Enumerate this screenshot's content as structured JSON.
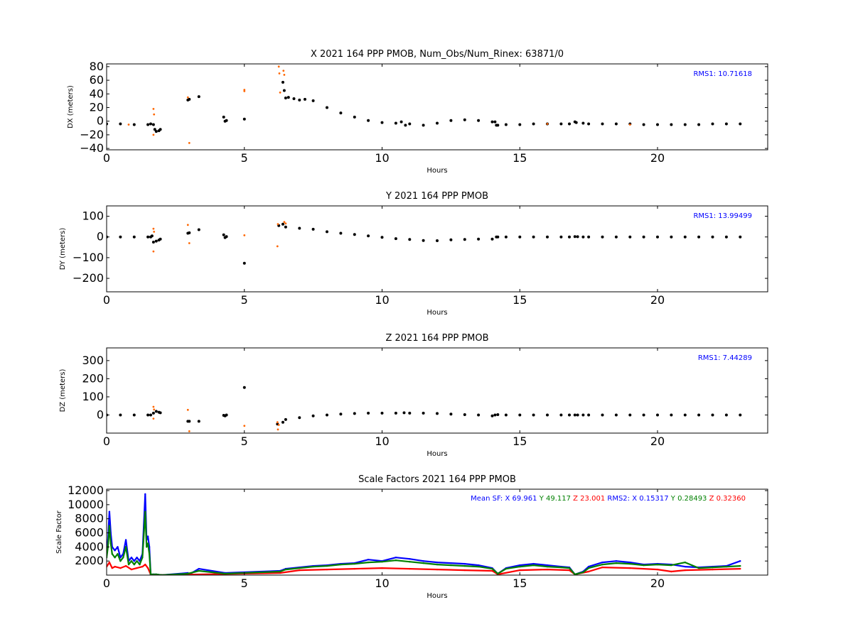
{
  "chart_data": [
    {
      "type": "scatter",
      "title": "X 2021 164 PPP  PMOB, Num_Obs/Num_Rinex: 63871/0",
      "xlabel": "Hours",
      "ylabel": "DX (meters)",
      "xlim": [
        0,
        24
      ],
      "ylim": [
        -42,
        84
      ],
      "xticks": [
        "0",
        "5",
        "10",
        "15",
        "20"
      ],
      "yticks": [
        "80",
        "60",
        "40",
        "20",
        "0",
        "−20",
        "−40"
      ],
      "annotation": "RMS1: 10.71618",
      "annotation_color": "#0000ff",
      "series": [
        {
          "color": "#000000",
          "x": [
            0,
            0.5,
            1.0,
            1.5,
            1.6,
            1.7,
            1.75,
            1.8,
            1.9,
            1.95,
            2.95,
            3.0,
            3.35,
            4.25,
            4.3,
            4.35,
            5.0,
            6.4,
            6.45,
            6.5,
            6.6,
            6.8,
            7.0,
            7.2,
            7.5,
            8.0,
            8.5,
            9.0,
            9.5,
            10.0,
            10.5,
            10.7,
            10.85,
            11.0,
            11.5,
            12.0,
            12.5,
            13.0,
            13.5,
            14.0,
            14.1,
            14.15,
            14.2,
            14.5,
            15.0,
            15.5,
            16.0,
            16.5,
            16.8,
            17.0,
            17.05,
            17.3,
            17.5,
            18.0,
            18.5,
            19.0,
            19.5,
            20.0,
            20.5,
            21.0,
            21.5,
            22.0,
            22.5,
            23.0
          ],
          "y": [
            -4,
            -4,
            -5,
            -5,
            -4,
            -5,
            -12,
            -15,
            -14,
            -12,
            31,
            32,
            36,
            6,
            0,
            1,
            3,
            57,
            45,
            34,
            35,
            33,
            31,
            32,
            30,
            20,
            12,
            6,
            1,
            -2,
            -3,
            -1,
            -6,
            -4,
            -6,
            -3,
            1,
            2,
            1,
            -1,
            -1,
            -6,
            -6,
            -5,
            -5,
            -4,
            -4,
            -4,
            -4,
            -1,
            -2,
            -3,
            -4,
            -4,
            -4,
            -4,
            -5,
            -5,
            -5,
            -5,
            -5,
            -4,
            -4,
            -4
          ]
        },
        {
          "color": "#ff6600",
          "x": [
            1.7,
            1.7,
            1.72,
            2.95,
            3.0,
            5.0,
            6.25,
            6.27,
            6.3,
            6.42,
            6.45,
            0.8,
            5.0,
            16.0,
            19.0
          ],
          "y": [
            18,
            -20,
            10,
            35,
            -32,
            46,
            80,
            70,
            42,
            74,
            68,
            -5,
            44,
            -4,
            -5
          ]
        }
      ]
    },
    {
      "type": "scatter",
      "title": "Y 2021 164 PPP  PMOB",
      "xlabel": "Hours",
      "ylabel": "DY (meters)",
      "xlim": [
        0,
        24
      ],
      "ylim": [
        -265,
        150
      ],
      "xticks": [
        "0",
        "5",
        "10",
        "15",
        "20"
      ],
      "yticks": [
        "100",
        "0",
        "−100",
        "−200"
      ],
      "annotation": "RMS1: 13.99499",
      "annotation_color": "#0000ff",
      "series": [
        {
          "color": "#000000",
          "x": [
            0,
            0.5,
            1.0,
            1.5,
            1.6,
            1.65,
            1.7,
            1.8,
            1.9,
            1.95,
            2.95,
            3.0,
            3.35,
            4.25,
            4.3,
            4.35,
            5.0,
            6.25,
            6.4,
            6.5,
            7.0,
            7.5,
            8.0,
            8.5,
            9.0,
            9.5,
            10.0,
            10.5,
            11.0,
            11.5,
            12.0,
            12.5,
            13.0,
            13.5,
            14.0,
            14.15,
            14.2,
            14.5,
            15.0,
            15.5,
            16.0,
            16.5,
            16.8,
            17.0,
            17.1,
            17.3,
            17.5,
            18.0,
            18.5,
            19.0,
            19.5,
            20.0,
            20.5,
            21.0,
            21.5,
            22.0,
            22.5,
            23.0
          ],
          "y": [
            0,
            0,
            0,
            0,
            0,
            5,
            -25,
            -20,
            -15,
            -10,
            18,
            20,
            35,
            10,
            -3,
            2,
            -127,
            55,
            62,
            48,
            42,
            37,
            25,
            18,
            12,
            5,
            -2,
            -8,
            -12,
            -17,
            -18,
            -14,
            -12,
            -10,
            -10,
            0,
            0,
            0,
            0,
            0,
            0,
            0,
            0,
            2,
            1,
            0,
            0,
            0,
            0,
            0,
            0,
            0,
            0,
            0,
            0,
            0,
            0,
            0
          ]
        },
        {
          "color": "#ff6600",
          "x": [
            1.7,
            1.7,
            1.72,
            2.95,
            3.0,
            5.0,
            6.2,
            6.22,
            6.45,
            6.5
          ],
          "y": [
            40,
            -70,
            25,
            58,
            -30,
            8,
            -45,
            62,
            72,
            65
          ]
        }
      ]
    },
    {
      "type": "scatter",
      "title": "Z 2021 164 PPP  PMOB",
      "xlabel": "Hours",
      "ylabel": "DZ (meters)",
      "xlim": [
        0,
        24
      ],
      "ylim": [
        -100,
        370
      ],
      "xticks": [
        "0",
        "5",
        "10",
        "15",
        "20"
      ],
      "yticks": [
        "300",
        "200",
        "100",
        "0"
      ],
      "annotation": "RMS1:  7.44289",
      "annotation_color": "#0000ff",
      "series": [
        {
          "color": "#000000",
          "x": [
            0,
            0.5,
            1.0,
            1.5,
            1.6,
            1.7,
            1.8,
            1.9,
            1.95,
            2.95,
            3.0,
            3.35,
            4.25,
            4.3,
            4.35,
            5.0,
            6.2,
            6.4,
            6.5,
            7.0,
            7.5,
            8.0,
            8.5,
            9.0,
            9.5,
            10.0,
            10.5,
            10.8,
            11.0,
            11.5,
            12.0,
            12.5,
            13.0,
            13.5,
            14.0,
            14.1,
            14.2,
            14.5,
            15.0,
            15.5,
            16.0,
            16.5,
            16.8,
            17.0,
            17.1,
            17.3,
            17.5,
            18.0,
            18.5,
            19.0,
            19.5,
            20.0,
            20.5,
            21.0,
            21.5,
            22.0,
            22.5,
            23.0
          ],
          "y": [
            0,
            0,
            0,
            0,
            0,
            10,
            20,
            15,
            12,
            -35,
            -35,
            -35,
            -2,
            -5,
            0,
            152,
            -50,
            -40,
            -25,
            -15,
            -5,
            0,
            5,
            8,
            10,
            10,
            10,
            12,
            10,
            10,
            8,
            5,
            2,
            0,
            -5,
            0,
            2,
            0,
            0,
            0,
            0,
            0,
            0,
            0,
            0,
            0,
            0,
            0,
            0,
            0,
            0,
            0,
            0,
            0,
            0,
            0,
            0,
            0
          ]
        },
        {
          "color": "#ff6600",
          "x": [
            1.7,
            1.7,
            1.72,
            2.95,
            3.0,
            5.0,
            6.2,
            6.22,
            6.25
          ],
          "y": [
            45,
            -20,
            30,
            28,
            -90,
            -60,
            -40,
            -80,
            -55
          ]
        }
      ]
    },
    {
      "type": "line",
      "title": "Scale Factors 2021 164 PPP  PMOB",
      "xlabel": "Hours",
      "ylabel": "Scale Factor",
      "xlim": [
        0,
        24
      ],
      "ylim": [
        0,
        12200
      ],
      "xticks": [
        "0",
        "5",
        "10",
        "15",
        "20"
      ],
      "yticks": [
        "12000",
        "10000",
        "8000",
        "6000",
        "4000",
        "2000"
      ],
      "annotation_parts": [
        {
          "text": "Mean SF: X  69.961",
          "color": "#0000ff"
        },
        {
          "text": "Y  49.117",
          "color": "#008000"
        },
        {
          "text": "Z  23.001",
          "color": "#ff0000"
        },
        {
          "text": "RMS2: X  0.15317",
          "color": "#0000ff"
        },
        {
          "text": "Y  0.28493",
          "color": "#008000"
        },
        {
          "text": "Z  0.32360",
          "color": "#ff0000"
        }
      ],
      "series": [
        {
          "color": "#0000ff",
          "x": [
            0,
            0.05,
            0.1,
            0.15,
            0.2,
            0.3,
            0.4,
            0.5,
            0.6,
            0.7,
            0.8,
            0.9,
            1.0,
            1.1,
            1.2,
            1.3,
            1.4,
            1.45,
            1.5,
            1.55,
            1.6,
            1.7,
            1.8,
            2.0,
            2.95,
            3.0,
            3.35,
            4.3,
            6.3,
            6.5,
            7.0,
            7.5,
            8.0,
            8.5,
            9.0,
            9.5,
            10.0,
            10.5,
            11.0,
            11.5,
            12.0,
            12.5,
            13.0,
            13.5,
            14.0,
            14.2,
            14.5,
            15.0,
            15.5,
            16.0,
            16.5,
            16.8,
            17.0,
            17.3,
            17.5,
            18.0,
            18.5,
            19.0,
            19.5,
            20.0,
            20.5,
            21.0,
            21.5,
            22.0,
            22.5,
            23.0
          ],
          "y": [
            3500,
            5000,
            9000,
            6000,
            4000,
            3500,
            4000,
            2500,
            3000,
            5000,
            2000,
            2500,
            2000,
            2500,
            2000,
            3000,
            11500,
            5000,
            5500,
            4000,
            100,
            100,
            100,
            0,
            300,
            100,
            900,
            300,
            600,
            900,
            1100,
            1300,
            1400,
            1600,
            1700,
            2200,
            2000,
            2500,
            2300,
            2000,
            1800,
            1700,
            1600,
            1400,
            1000,
            200,
            1000,
            1400,
            1600,
            1400,
            1200,
            1100,
            100,
            500,
            1200,
            1800,
            2000,
            1800,
            1500,
            1600,
            1500,
            1200,
            1100,
            1200,
            1300,
            2000
          ]
        },
        {
          "color": "#ff0000",
          "x": [
            0,
            0.1,
            0.2,
            0.3,
            0.5,
            0.7,
            0.9,
            1.1,
            1.3,
            1.4,
            1.5,
            1.6,
            2.0,
            6.3,
            7.0,
            8.0,
            9.0,
            10.0,
            11.0,
            12.0,
            13.0,
            14.0,
            14.2,
            15.0,
            16.0,
            16.8,
            17.0,
            17.5,
            18.0,
            19.0,
            20.0,
            20.5,
            21.0,
            22.0,
            23.0
          ],
          "y": [
            1200,
            1800,
            1000,
            1200,
            1000,
            1300,
            800,
            1000,
            1200,
            1500,
            1000,
            100,
            0,
            300,
            700,
            800,
            900,
            1000,
            900,
            800,
            700,
            600,
            100,
            700,
            800,
            700,
            100,
            500,
            1100,
            1000,
            800,
            500,
            700,
            800,
            900
          ]
        },
        {
          "color": "#008000",
          "x": [
            0,
            0.05,
            0.1,
            0.15,
            0.2,
            0.3,
            0.4,
            0.5,
            0.6,
            0.7,
            0.8,
            0.9,
            1.0,
            1.1,
            1.2,
            1.3,
            1.4,
            1.45,
            1.5,
            1.55,
            1.6,
            1.8,
            2.0,
            2.95,
            3.35,
            4.3,
            6.3,
            6.5,
            7.0,
            7.5,
            8.0,
            8.5,
            9.0,
            9.5,
            10.0,
            10.5,
            11.0,
            11.5,
            12.0,
            12.5,
            13.0,
            13.5,
            14.0,
            14.2,
            14.5,
            15.0,
            15.5,
            16.0,
            16.5,
            16.8,
            17.0,
            17.3,
            17.5,
            18.0,
            18.5,
            19.0,
            19.5,
            20.0,
            20.5,
            21.0,
            21.5,
            22.0,
            22.5,
            23.0
          ],
          "y": [
            2500,
            4000,
            7000,
            4500,
            3000,
            2500,
            3000,
            2000,
            2500,
            4000,
            1500,
            2000,
            1500,
            2000,
            1500,
            2500,
            9000,
            4000,
            4500,
            3000,
            100,
            100,
            0,
            200,
            600,
            200,
            500,
            800,
            1000,
            1200,
            1300,
            1500,
            1600,
            1800,
            1900,
            2100,
            1900,
            1700,
            1500,
            1400,
            1300,
            1200,
            900,
            200,
            900,
            1200,
            1400,
            1200,
            1100,
            1000,
            100,
            400,
            1000,
            1500,
            1700,
            1600,
            1400,
            1500,
            1400,
            1800,
            1000,
            1100,
            1200,
            1300
          ]
        }
      ]
    }
  ]
}
